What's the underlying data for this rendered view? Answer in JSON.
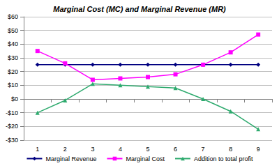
{
  "chart_data": {
    "type": "line",
    "title": "Marginal Cost (MC) and Marginal Revenue (MR)",
    "categories": [
      "1",
      "2",
      "3",
      "4",
      "5",
      "6",
      "7",
      "8",
      "9"
    ],
    "series": [
      {
        "name": "Marginal Revenue",
        "color": "#000080",
        "marker": "diamond",
        "values": [
          25,
          25,
          25,
          25,
          25,
          25,
          25,
          25,
          25
        ]
      },
      {
        "name": "Marginal Cost",
        "color": "#ff00ff",
        "marker": "square",
        "values": [
          35,
          26,
          14,
          15,
          16,
          18,
          25,
          34,
          47
        ]
      },
      {
        "name": "Addition to total profit",
        "color": "#2eaa6e",
        "marker": "triangle",
        "values": [
          -10,
          -1,
          11,
          10,
          9,
          8,
          0,
          -9,
          -22
        ]
      }
    ],
    "ylim": [
      -30,
      60
    ],
    "yticks": [
      {
        "value": -30,
        "label": "-$30"
      },
      {
        "value": -20,
        "label": "-$20"
      },
      {
        "value": -10,
        "label": "-$10"
      },
      {
        "value": 0,
        "label": "$0"
      },
      {
        "value": 10,
        "label": "$10"
      },
      {
        "value": 20,
        "label": "$20"
      },
      {
        "value": 30,
        "label": "$30"
      },
      {
        "value": 40,
        "label": "$40"
      },
      {
        "value": 50,
        "label": "$50"
      },
      {
        "value": 60,
        "label": "$60"
      }
    ],
    "grid": true,
    "legend": "bottom"
  }
}
